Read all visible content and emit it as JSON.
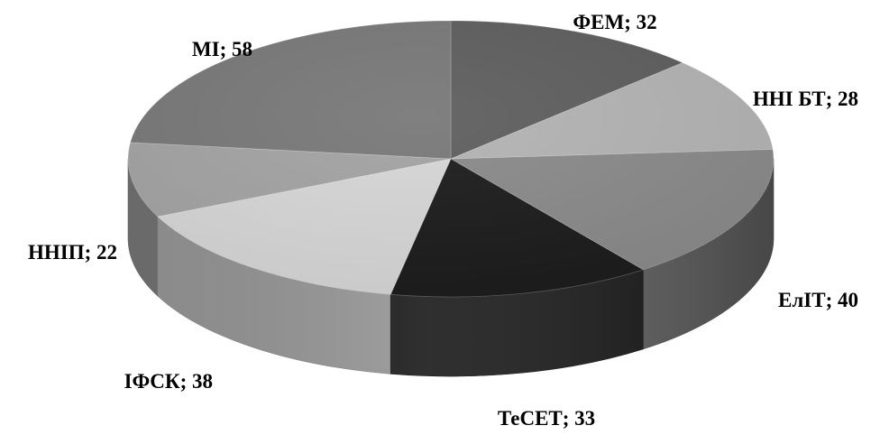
{
  "chart_data": {
    "type": "pie",
    "style": "3d",
    "title": "",
    "slices": [
      {
        "label": "ФЕМ",
        "value": 32,
        "color": "#5e5e5e",
        "data_label": "ФЕМ; 32"
      },
      {
        "label": "ННІ БТ",
        "value": 28,
        "color": "#b3b3b3",
        "data_label": "ННІ БТ; 28"
      },
      {
        "label": "ЕлІТ",
        "value": 40,
        "color": "#8a8a8a",
        "data_label": "ЕлІТ; 40"
      },
      {
        "label": "ТеСЕТ",
        "value": 33,
        "color": "#1c1c1c",
        "data_label": "ТеСЕТ; 33"
      },
      {
        "label": "ІФСК",
        "value": 38,
        "color": "#d6d6d6",
        "data_label": "ІФСК; 38"
      },
      {
        "label": "ННІП",
        "value": 22,
        "color": "#a3a3a3",
        "data_label": "ННІП; 22"
      },
      {
        "label": "МІ",
        "value": 58,
        "color": "#787878",
        "data_label": "МІ; 58"
      }
    ]
  }
}
